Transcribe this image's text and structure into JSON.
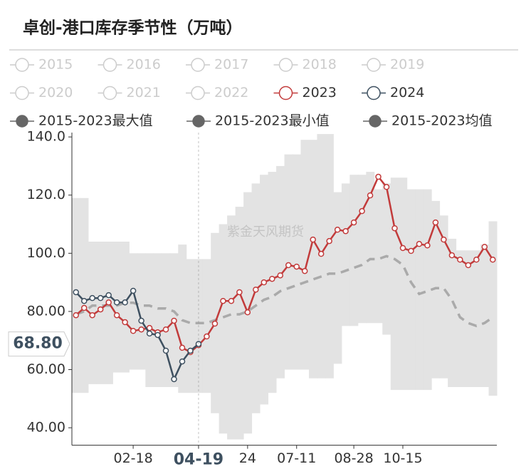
{
  "chart_data": {
    "type": "line",
    "title": "卓创-港口库存季节性（万吨）",
    "watermark": "紫金天风期货",
    "categories": [
      null,
      null,
      null,
      null,
      null,
      null,
      null,
      "02-18",
      null,
      null,
      null,
      null,
      null,
      null,
      null,
      "04-19",
      null,
      null,
      null,
      null,
      null,
      "24",
      null,
      null,
      null,
      null,
      null,
      "07-11",
      null,
      null,
      null,
      null,
      null,
      null,
      "08-28",
      null,
      null,
      null,
      null,
      null,
      "10-15",
      null,
      null,
      null,
      null,
      null,
      null,
      null,
      null,
      null,
      null,
      null
    ],
    "ylim": [
      34,
      141.5
    ],
    "yticks": [
      {
        "value": 40,
        "label": "40.00"
      },
      {
        "value": 60,
        "label": "60.00"
      },
      {
        "value": 80,
        "label": "80.00"
      },
      {
        "value": 100,
        "label": "100.0"
      },
      {
        "value": 120,
        "label": "120.0"
      },
      {
        "value": 140,
        "label": "140.0"
      }
    ],
    "pointer": {
      "category": "04-19",
      "value": 68.8,
      "label": "68.80"
    },
    "series": [
      {
        "name": "2015",
        "color": "#cccccc",
        "inactive": true
      },
      {
        "name": "2016",
        "color": "#cccccc",
        "inactive": true
      },
      {
        "name": "2017",
        "color": "#cccccc",
        "inactive": true
      },
      {
        "name": "2018",
        "color": "#cccccc",
        "inactive": true
      },
      {
        "name": "2019",
        "color": "#cccccc",
        "inactive": true
      },
      {
        "name": "2020",
        "color": "#cccccc",
        "inactive": true
      },
      {
        "name": "2021",
        "color": "#cccccc",
        "inactive": true
      },
      {
        "name": "2022",
        "color": "#cccccc",
        "inactive": true
      },
      {
        "name": "2023",
        "color": "#c23b3b",
        "values": [
          78.7,
          81.2,
          78.7,
          80.7,
          83.1,
          78.7,
          76.3,
          73.3,
          73.8,
          74.3,
          72.8,
          73.8,
          76.8,
          67.5,
          66.0,
          68.4,
          71.4,
          75.8,
          83.6,
          83.6,
          86.6,
          79.7,
          87.5,
          90.0,
          91.2,
          92.4,
          95.9,
          95.4,
          93.9,
          104.7,
          99.8,
          104.2,
          108.1,
          107.6,
          110.6,
          114.5,
          119.9,
          126.3,
          122.8,
          108.6,
          101.8,
          100.8,
          103.2,
          102.7,
          110.6,
          104.7,
          99.3,
          97.8,
          95.9,
          97.8,
          102.2,
          97.8
        ]
      },
      {
        "name": "2024",
        "color": "#3e5060",
        "values": [
          86.6,
          83.6,
          84.6,
          84.6,
          85.6,
          83.1,
          83.1,
          87.1,
          76.8,
          72.4,
          71.9,
          66.5,
          56.7,
          62.8,
          66.5,
          68.8,
          null,
          null,
          null,
          null,
          null,
          null,
          null,
          null,
          null,
          null,
          null,
          null,
          null,
          null,
          null,
          null,
          null,
          null,
          null,
          null,
          null,
          null,
          null,
          null,
          null,
          null,
          null,
          null,
          null,
          null,
          null,
          null,
          null,
          null,
          null,
          null
        ]
      },
      {
        "name": "2015-2023最大值",
        "color": "#666666",
        "band": "max",
        "values": [
          119,
          119,
          104,
          104,
          104,
          104,
          104,
          100,
          100,
          100,
          100,
          100,
          100,
          103,
          98,
          98,
          98,
          107,
          110,
          113,
          116,
          121,
          124,
          127,
          128,
          130,
          134,
          134,
          139,
          139,
          141,
          141,
          121,
          124,
          127,
          127,
          128,
          122,
          124,
          126,
          126,
          122,
          122,
          122,
          118,
          113,
          105,
          101,
          101,
          101,
          103,
          111
        ]
      },
      {
        "name": "2015-2023最小值",
        "color": "#666666",
        "band": "min",
        "values": [
          52,
          52,
          55,
          55,
          55,
          59,
          59,
          60,
          60,
          54,
          54,
          54,
          54,
          52,
          52,
          52,
          52,
          45,
          38,
          36,
          36,
          38,
          45,
          48,
          52,
          57,
          60,
          60,
          60,
          57,
          57,
          57,
          62,
          75,
          75,
          76,
          76,
          76,
          72,
          53,
          53,
          53,
          53,
          53,
          57,
          57,
          54,
          54,
          54,
          54,
          54,
          51
        ]
      },
      {
        "name": "2015-2023均值",
        "color": "#666666",
        "band": "mean",
        "values": [
          79,
          80,
          82,
          82,
          82,
          82,
          83,
          83,
          82,
          82,
          81,
          81,
          80,
          77,
          76,
          76,
          76,
          77,
          78,
          79,
          79,
          80,
          82,
          84,
          85,
          87,
          88,
          89,
          90,
          91,
          92,
          93,
          93,
          94,
          95,
          96,
          98,
          98,
          99,
          98,
          96,
          90,
          86,
          87,
          88,
          88,
          84,
          78,
          76,
          75,
          76,
          78
        ]
      }
    ]
  }
}
